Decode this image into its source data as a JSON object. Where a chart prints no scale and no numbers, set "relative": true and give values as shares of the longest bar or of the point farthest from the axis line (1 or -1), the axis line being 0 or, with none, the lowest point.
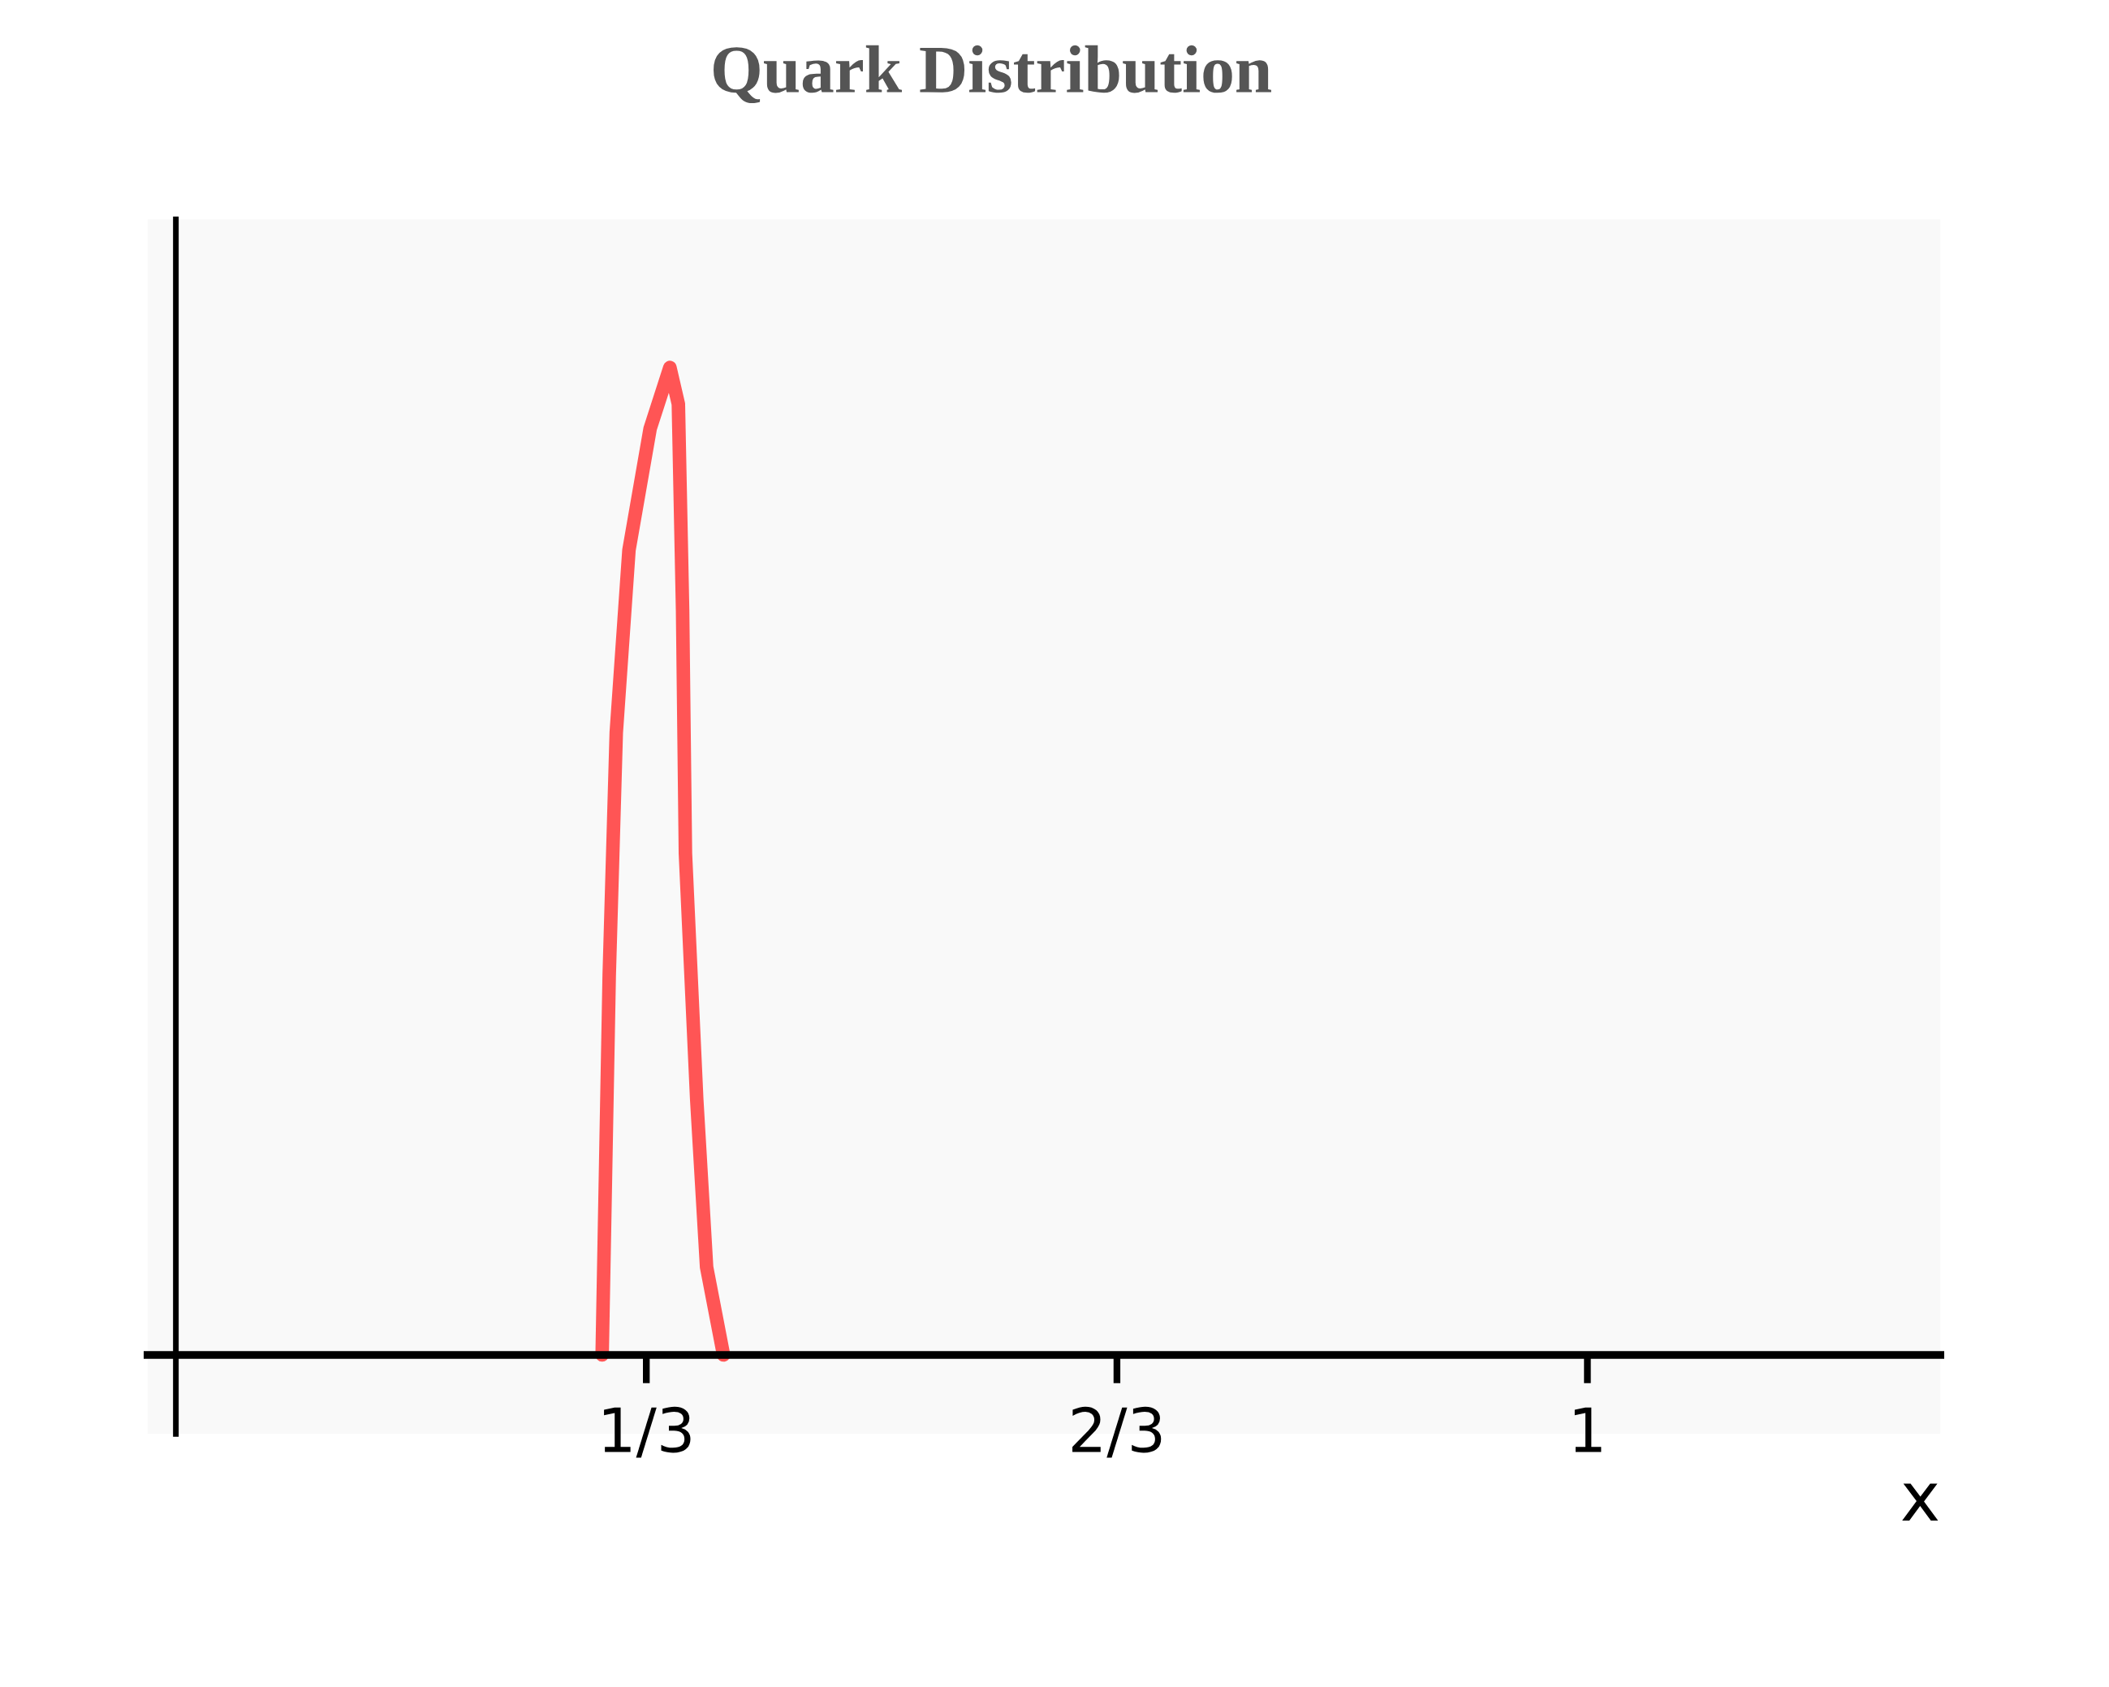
{
  "chart_data": {
    "type": "line",
    "title": "Quark Distribution",
    "xlabel": "x",
    "relative": true,
    "xlim": [
      -0.02,
      1.25
    ],
    "xticks": [
      {
        "value": 0.3333,
        "label": "1/3"
      },
      {
        "value": 0.6667,
        "label": "2/3"
      },
      1
    ],
    "series": [
      {
        "color": "#ff5555",
        "x": [
          0.302,
          0.307,
          0.312,
          0.321,
          0.336,
          0.35,
          0.356,
          0.359,
          0.361,
          0.369,
          0.376,
          0.388
        ],
        "values": [
          0,
          0.384,
          0.63,
          0.815,
          0.938,
          1,
          0.963,
          0.754,
          0.508,
          0.259,
          0.089,
          0
        ]
      }
    ],
    "grid": false,
    "legend": false,
    "line_style": "solid"
  }
}
